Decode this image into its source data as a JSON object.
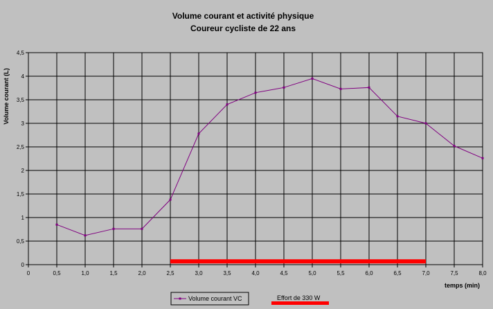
{
  "chart_data": {
    "type": "line",
    "title": "Volume courant et activité physique",
    "subtitle": "Coureur cycliste de 22 ans",
    "xlabel": "temps (min)",
    "ylabel": "Volume courant (L)",
    "xlim": [
      0,
      8
    ],
    "ylim": [
      0,
      4.5
    ],
    "x_ticks": [
      "0",
      "0,5",
      "1,0",
      "1,5",
      "2,0",
      "2,5",
      "3,0",
      "3,5",
      "4,0",
      "4,5",
      "5,0",
      "5,5",
      "6,0",
      "6,5",
      "7,0",
      "7,5",
      "8,0"
    ],
    "y_ticks": [
      "0",
      "0,5",
      "1",
      "1,5",
      "2",
      "2,5",
      "3",
      "3,5",
      "4",
      "4,5"
    ],
    "grid": true,
    "legend_position": "bottom",
    "series": [
      {
        "name": "Volume courant VC",
        "color": "#800080",
        "marker": "square",
        "x": [
          0.5,
          1.0,
          1.5,
          2.0,
          2.5,
          3.0,
          3.5,
          4.0,
          4.5,
          5.0,
          5.5,
          6.0,
          6.5,
          7.0,
          7.5,
          8.0
        ],
        "y": [
          0.85,
          0.62,
          0.76,
          0.76,
          1.38,
          2.78,
          3.4,
          3.65,
          3.76,
          3.95,
          3.73,
          3.76,
          3.15,
          3.0,
          2.52,
          2.26
        ]
      },
      {
        "name": "Effort de 330 W",
        "color": "#ff0000",
        "type": "segment",
        "x": [
          2.5,
          7.0
        ],
        "y": [
          0.07,
          0.07
        ]
      }
    ]
  }
}
